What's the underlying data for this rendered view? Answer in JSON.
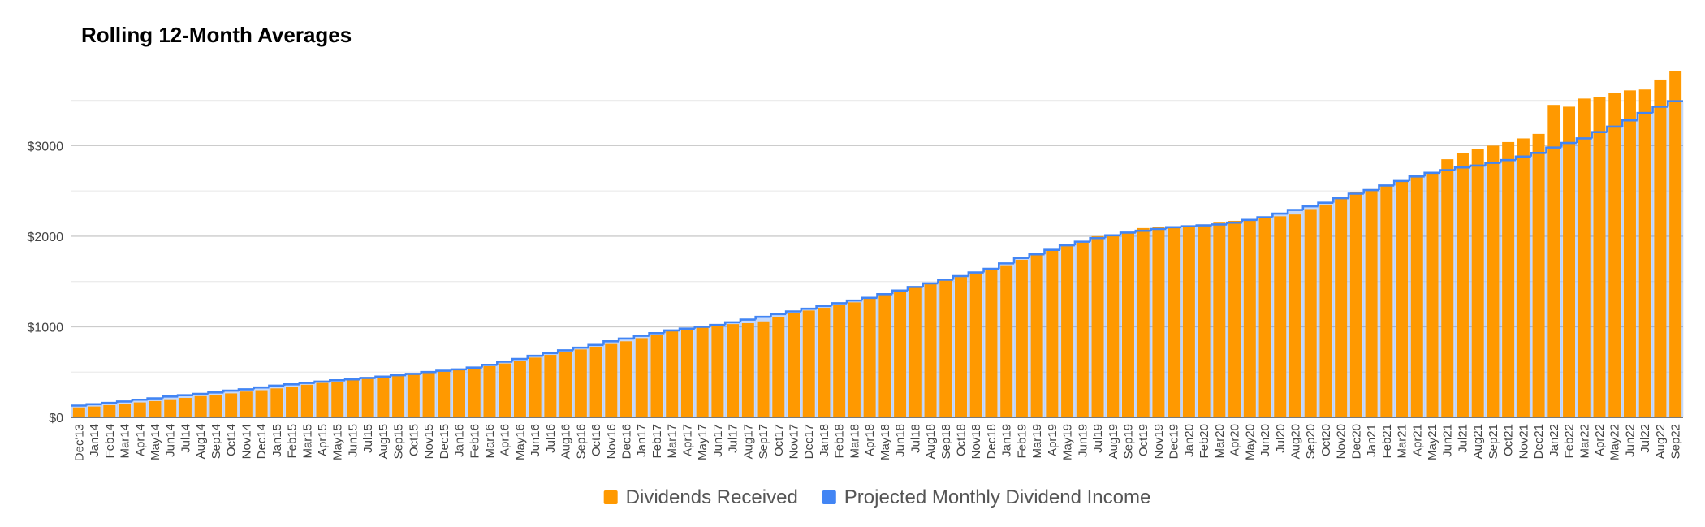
{
  "chart_data": {
    "type": "bar",
    "title": "Rolling 12-Month Averages",
    "categories": [
      "Dec'13",
      "Jan14",
      "Feb14",
      "Mar14",
      "Apr14",
      "May14",
      "Jun14",
      "Jul14",
      "Aug14",
      "Sep14",
      "Oct14",
      "Nov14",
      "Dec14",
      "Jan15",
      "Feb15",
      "Mar15",
      "Apr15",
      "May15",
      "Jun15",
      "Jul15",
      "Aug15",
      "Sep15",
      "Oct15",
      "Nov15",
      "Dec15",
      "Jan16",
      "Feb16",
      "Mar16",
      "Apr16",
      "May16",
      "Jun16",
      "Jul16",
      "Aug16",
      "Sep16",
      "Oct16",
      "Nov16",
      "Dec16",
      "Jan17",
      "Feb17",
      "Mar17",
      "Apr17",
      "May17",
      "Jun17",
      "Jul17",
      "Aug17",
      "Sep17",
      "Oct17",
      "Nov17",
      "Dec17",
      "Jan18",
      "Feb18",
      "Mar18",
      "Apr18",
      "May18",
      "Jun18",
      "Jul18",
      "Aug18",
      "Sep18",
      "Oct18",
      "Nov18",
      "Dec18",
      "Jan19",
      "Feb19",
      "Mar19",
      "Apr19",
      "May19",
      "Jun19",
      "Jul19",
      "Aug19",
      "Sep19",
      "Oct19",
      "Nov19",
      "Dec19",
      "Jan20",
      "Feb20",
      "Mar20",
      "Apr20",
      "May20",
      "Jun20",
      "Jul20",
      "Aug20",
      "Sep20",
      "Oct20",
      "Nov20",
      "Dec20",
      "Jan21",
      "Feb21",
      "Mar21",
      "Apr21",
      "May21",
      "Jun21",
      "Jul21",
      "Aug21",
      "Sep21",
      "Oct21",
      "Nov21",
      "Dec21",
      "Jan22",
      "Feb22",
      "Mar22",
      "Apr22",
      "May22",
      "Jun22",
      "Jul22",
      "Aug22",
      "Sep22"
    ],
    "series": [
      {
        "name": "Dividends Received",
        "type": "bar",
        "color": "#ff9900",
        "values": [
          110,
          120,
          135,
          150,
          165,
          180,
          200,
          215,
          235,
          250,
          265,
          285,
          300,
          320,
          340,
          360,
          380,
          395,
          410,
          425,
          440,
          460,
          475,
          490,
          505,
          520,
          540,
          565,
          595,
          625,
          660,
          690,
          720,
          750,
          780,
          810,
          840,
          875,
          910,
          950,
          990,
          1000,
          1010,
          1030,
          1040,
          1060,
          1110,
          1150,
          1180,
          1210,
          1240,
          1270,
          1310,
          1350,
          1390,
          1430,
          1470,
          1510,
          1550,
          1590,
          1630,
          1680,
          1740,
          1790,
          1840,
          1890,
          1930,
          2000,
          2020,
          2040,
          2090,
          2100,
          2090,
          2120,
          2130,
          2150,
          2170,
          2180,
          2210,
          2220,
          2240,
          2300,
          2350,
          2420,
          2490,
          2520,
          2560,
          2600,
          2650,
          2700,
          2850,
          2920,
          2960,
          3000,
          3040,
          3080,
          3130,
          3450,
          3430,
          3520,
          3540,
          3580,
          3610,
          3620,
          3730,
          3820
        ]
      },
      {
        "name": "Projected Monthly Dividend Income",
        "type": "stepped-area",
        "color": "#4285f4",
        "values": [
          130,
          145,
          160,
          175,
          195,
          210,
          230,
          245,
          260,
          275,
          295,
          310,
          330,
          350,
          365,
          380,
          395,
          410,
          420,
          435,
          450,
          465,
          480,
          500,
          515,
          530,
          550,
          580,
          615,
          645,
          680,
          710,
          740,
          770,
          800,
          840,
          870,
          900,
          930,
          960,
          980,
          1000,
          1020,
          1050,
          1080,
          1110,
          1140,
          1170,
          1200,
          1230,
          1260,
          1290,
          1320,
          1360,
          1400,
          1440,
          1480,
          1520,
          1560,
          1600,
          1640,
          1700,
          1760,
          1800,
          1850,
          1900,
          1940,
          1980,
          2010,
          2040,
          2060,
          2080,
          2100,
          2110,
          2120,
          2130,
          2150,
          2180,
          2210,
          2250,
          2290,
          2330,
          2370,
          2420,
          2470,
          2510,
          2560,
          2610,
          2660,
          2700,
          2730,
          2760,
          2780,
          2810,
          2840,
          2880,
          2920,
          2980,
          3030,
          3080,
          3150,
          3210,
          3280,
          3360,
          3430,
          3490
        ]
      }
    ],
    "ylim": [
      0,
      3900
    ],
    "yticks": [
      {
        "value": 0,
        "label": "$0"
      },
      {
        "value": 1000,
        "label": "$1000"
      },
      {
        "value": 2000,
        "label": "$2000"
      },
      {
        "value": 3000,
        "label": "$3000"
      }
    ],
    "minor_yticks": [
      500,
      1500,
      2500,
      3500
    ],
    "grid": true,
    "legend": "bottom"
  }
}
